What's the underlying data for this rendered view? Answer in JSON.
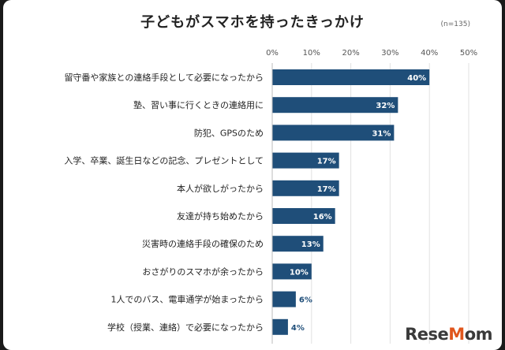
{
  "chart_data": {
    "type": "bar",
    "orientation": "horizontal",
    "title": "子どもがスマホを持ったきっかけ",
    "note": "(n=135)",
    "categories": [
      "留守番や家族との連絡手段として必要になったから",
      "塾、習い事に行くときの連絡用に",
      "防犯、GPSのため",
      "入学、卒業、誕生日などの記念、プレゼントとして",
      "本人が欲しがったから",
      "友達が持ち始めたから",
      "災害時の連絡手段の確保のため",
      "おさがりのスマホが余ったから",
      "1人でのバス、電車通学が始まったから",
      "学校（授業、連絡）で必要になったから"
    ],
    "values": [
      40,
      32,
      31,
      17,
      17,
      16,
      13,
      10,
      6,
      4
    ],
    "value_labels": [
      "40%",
      "32%",
      "31%",
      "17%",
      "17%",
      "16%",
      "13%",
      "10%",
      "6%",
      "4%"
    ],
    "xlim": [
      0,
      50
    ],
    "ticks": [
      0,
      10,
      20,
      30,
      40,
      50
    ],
    "tick_labels": [
      "0%",
      "10%",
      "20%",
      "30%",
      "40%",
      "50%"
    ],
    "bar_color": "#1f4e79",
    "grid": true
  },
  "brand": {
    "logo_text": "ReseMom"
  }
}
